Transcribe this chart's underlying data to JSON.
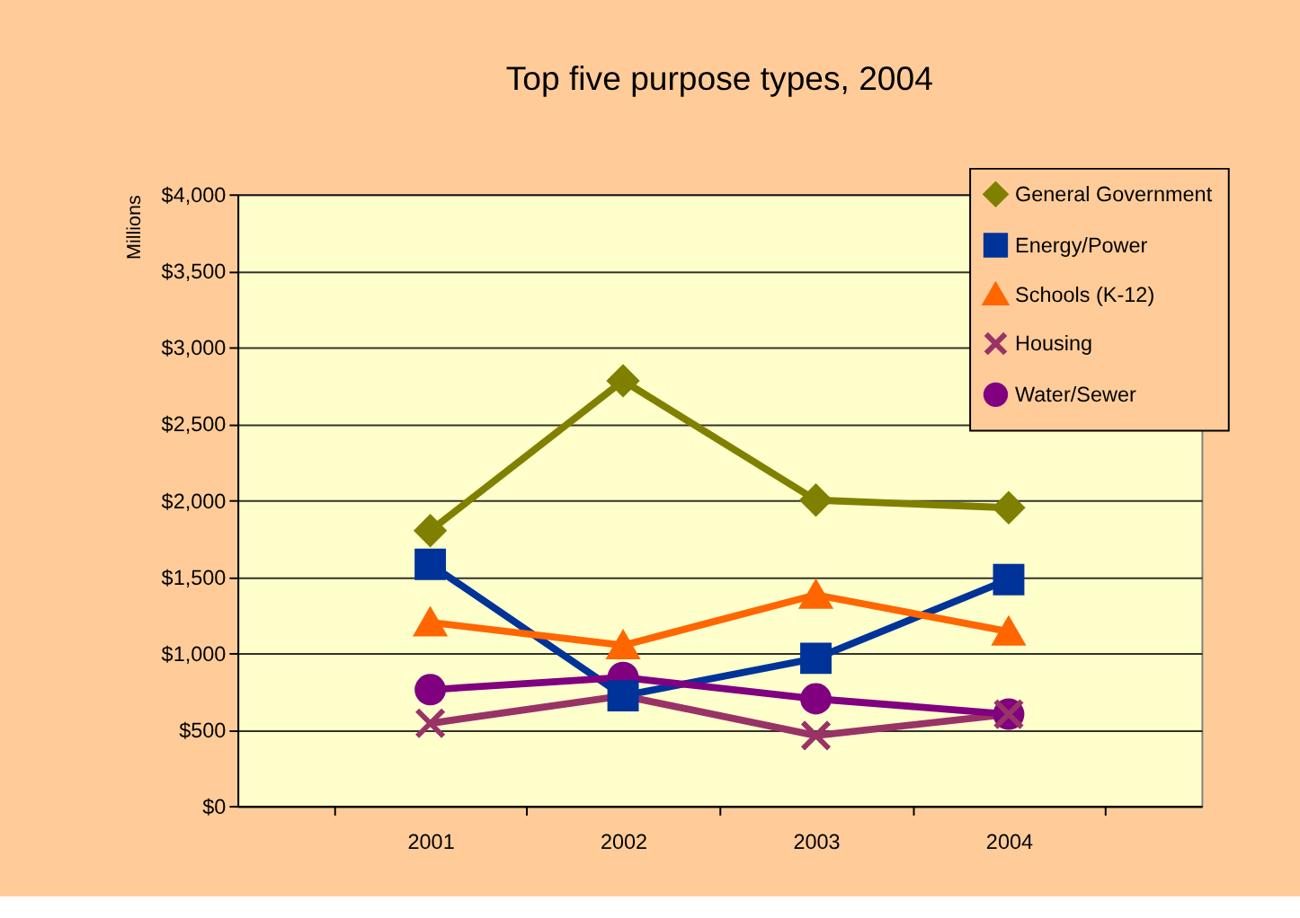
{
  "chart_data": {
    "type": "line",
    "title": "Top five purpose types, 2004",
    "ylabel": "Millions",
    "categories": [
      "2001",
      "2002",
      "2003",
      "2004"
    ],
    "series": [
      {
        "name": "General Government",
        "color": "#808000",
        "marker": "diamond",
        "values": [
          1800,
          2780,
          2000,
          1950
        ]
      },
      {
        "name": "Energy/Power",
        "color": "#003399",
        "marker": "square",
        "values": [
          1580,
          720,
          965,
          1480
        ]
      },
      {
        "name": "Schools (K-12)",
        "color": "#ff6600",
        "marker": "triangle",
        "values": [
          1200,
          1050,
          1380,
          1140
        ]
      },
      {
        "name": "Housing",
        "color": "#993366",
        "marker": "cross",
        "values": [
          540,
          720,
          460,
          600
        ]
      },
      {
        "name": "Water/Sewer",
        "color": "#800080",
        "marker": "circle",
        "values": [
          760,
          840,
          700,
          600
        ]
      }
    ],
    "ylim": [
      0,
      4000
    ],
    "yticks": [
      {
        "value": 0,
        "label": "$0"
      },
      {
        "value": 500,
        "label": "$500"
      },
      {
        "value": 1000,
        "label": "$1,000"
      },
      {
        "value": 1500,
        "label": "$1,500"
      },
      {
        "value": 2000,
        "label": "$2,000"
      },
      {
        "value": 2500,
        "label": "$2,500"
      },
      {
        "value": 3000,
        "label": "$3,000"
      },
      {
        "value": 3500,
        "label": "$3,500"
      },
      {
        "value": 4000,
        "label": "$4,000"
      }
    ],
    "grid": "y",
    "legend": "top right",
    "line_style": "solid"
  }
}
